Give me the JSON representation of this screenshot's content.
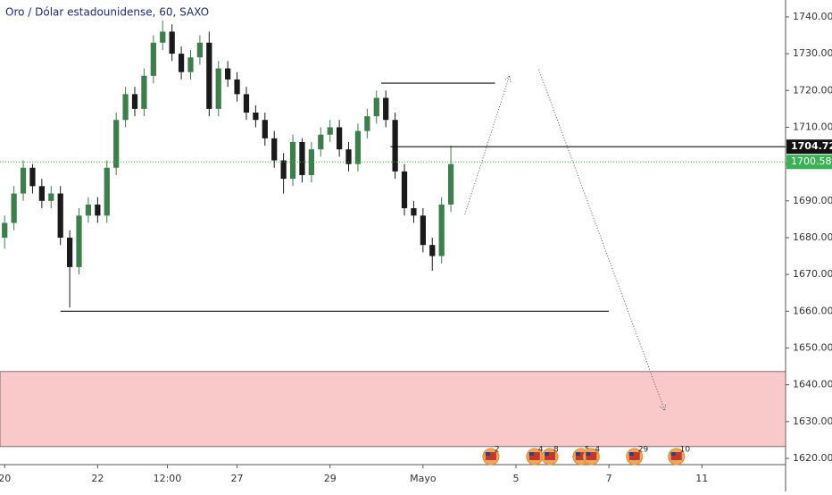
{
  "chart_data": {
    "type": "candlestick",
    "title": "Oro / Dólar estadounidense, 60, SAXO",
    "x": [
      0,
      0.2,
      0.4,
      0.6,
      0.8,
      1,
      1.2,
      1.4,
      1.6,
      1.8,
      2,
      2.2,
      2.4,
      2.6,
      2.8,
      3,
      3.2,
      3.4,
      3.6,
      3.8,
      4,
      4.2,
      4.4,
      4.6,
      4.8,
      5,
      5.2,
      5.4,
      5.6,
      5.8,
      6,
      6.2,
      6.4,
      6.6,
      6.8,
      7,
      7.2,
      7.4,
      7.6,
      7.8,
      8,
      8.2,
      8.4,
      8.6,
      8.8,
      9,
      9.2,
      9.4,
      9.6
    ],
    "ohlc": {
      "open": [
        1680,
        1684,
        1692,
        1699,
        1694,
        1690,
        1692,
        1680,
        1672,
        1686,
        1689,
        1686,
        1699,
        1712,
        1719,
        1715,
        1724,
        1733,
        1736,
        1730,
        1725,
        1729,
        1733,
        1715,
        1726,
        1723,
        1719,
        1714,
        1712,
        1707,
        1701,
        1696,
        1706,
        1697,
        1704,
        1708,
        1710,
        1704,
        1700,
        1709,
        1713,
        1718,
        1712,
        1698,
        1688,
        1686,
        1678,
        1675,
        1689
      ],
      "high": [
        1686,
        1694,
        1701,
        1700,
        1696,
        1694,
        1694,
        1682,
        1688,
        1691,
        1691,
        1701,
        1714,
        1721,
        1721,
        1726,
        1735,
        1739,
        1738,
        1732,
        1731,
        1735,
        1736,
        1728,
        1728,
        1725,
        1721,
        1716,
        1714,
        1709,
        1703,
        1708,
        1707,
        1706,
        1710,
        1712,
        1712,
        1706,
        1711,
        1715,
        1720,
        1720,
        1714,
        1700,
        1690,
        1688,
        1680,
        1691,
        1705
      ],
      "low": [
        1677,
        1682,
        1690,
        1692,
        1688,
        1688,
        1678,
        1661,
        1670,
        1684,
        1684,
        1684,
        1697,
        1710,
        1713,
        1713,
        1722,
        1731,
        1728,
        1723,
        1723,
        1727,
        1713,
        1713,
        1721,
        1717,
        1712,
        1710,
        1705,
        1699,
        1692,
        1694,
        1695,
        1695,
        1702,
        1706,
        1702,
        1698,
        1698,
        1707,
        1711,
        1710,
        1696,
        1686,
        1684,
        1676,
        1671,
        1673,
        1687
      ],
      "close": [
        1684,
        1692,
        1699,
        1694,
        1690,
        1692,
        1680,
        1672,
        1686,
        1689,
        1686,
        1699,
        1712,
        1719,
        1715,
        1724,
        1733,
        1736,
        1730,
        1725,
        1729,
        1733,
        1715,
        1726,
        1723,
        1719,
        1714,
        1712,
        1707,
        1701,
        1696,
        1706,
        1697,
        1704,
        1708,
        1710,
        1704,
        1700,
        1709,
        1713,
        1718,
        1712,
        1698,
        1688,
        1686,
        1678,
        1675,
        1689,
        1700
      ]
    },
    "up_color": "#3d7f4a",
    "down_color": "#1a1a1a",
    "xlim": [
      -0.1,
      16.8
    ],
    "xticks": [
      {
        "value": 0,
        "label": "20"
      },
      {
        "value": 2,
        "label": "22"
      },
      {
        "value": 3.5,
        "label": "12:00"
      },
      {
        "value": 5,
        "label": "27"
      },
      {
        "value": 7,
        "label": "29"
      },
      {
        "value": 9,
        "label": "Mayo"
      },
      {
        "value": 11,
        "label": "5"
      },
      {
        "value": 13,
        "label": "7"
      },
      {
        "value": 15,
        "label": "11"
      }
    ],
    "ylim": [
      1618.3,
      1744.6
    ],
    "yticks": [
      {
        "value": 1620,
        "label": "1620.00"
      },
      {
        "value": 1630,
        "label": "1630.00"
      },
      {
        "value": 1640,
        "label": "1640.00"
      },
      {
        "value": 1650,
        "label": "1650.00"
      },
      {
        "value": 1660,
        "label": "1660.00"
      },
      {
        "value": 1670,
        "label": "1670.00"
      },
      {
        "value": 1680,
        "label": "1680.00"
      },
      {
        "value": 1690,
        "label": "1690.00"
      },
      {
        "value": 1700,
        "label": "1700.00"
      },
      {
        "value": 1710,
        "label": "1710.00"
      },
      {
        "value": 1720,
        "label": "1720.00"
      },
      {
        "value": 1730,
        "label": "1730.00"
      },
      {
        "value": 1740,
        "label": "1740.00"
      }
    ],
    "zone": {
      "from": 1623.2,
      "to": 1643.6,
      "color": "#f9c9c9"
    },
    "levels": [
      {
        "value": 1660,
        "x": [
          1.2,
          13.0
        ]
      },
      {
        "value": 1722,
        "x": [
          8.1,
          10.55
        ]
      },
      {
        "value": 1704.72,
        "x": [
          8.3,
          16.8
        ],
        "tag": true
      }
    ],
    "price_line": {
      "value": 1700.58,
      "color": "#3cb054"
    },
    "arrows": [
      {
        "x": [
          9.9,
          10.86
        ],
        "y": [
          1686.3,
          1724
        ]
      },
      {
        "x": [
          11.49,
          14.2
        ],
        "y": [
          1725.7,
          1633
        ]
      }
    ],
    "events": [
      {
        "x": 10.46,
        "label": "2"
      },
      {
        "x": 11.4,
        "label": "4"
      },
      {
        "x": 11.73,
        "label": "8"
      },
      {
        "x": 12.4,
        "label": "5"
      },
      {
        "x": 12.62,
        "label": "4"
      },
      {
        "x": 13.55,
        "label": "29"
      },
      {
        "x": 14.45,
        "label": "10"
      }
    ]
  }
}
